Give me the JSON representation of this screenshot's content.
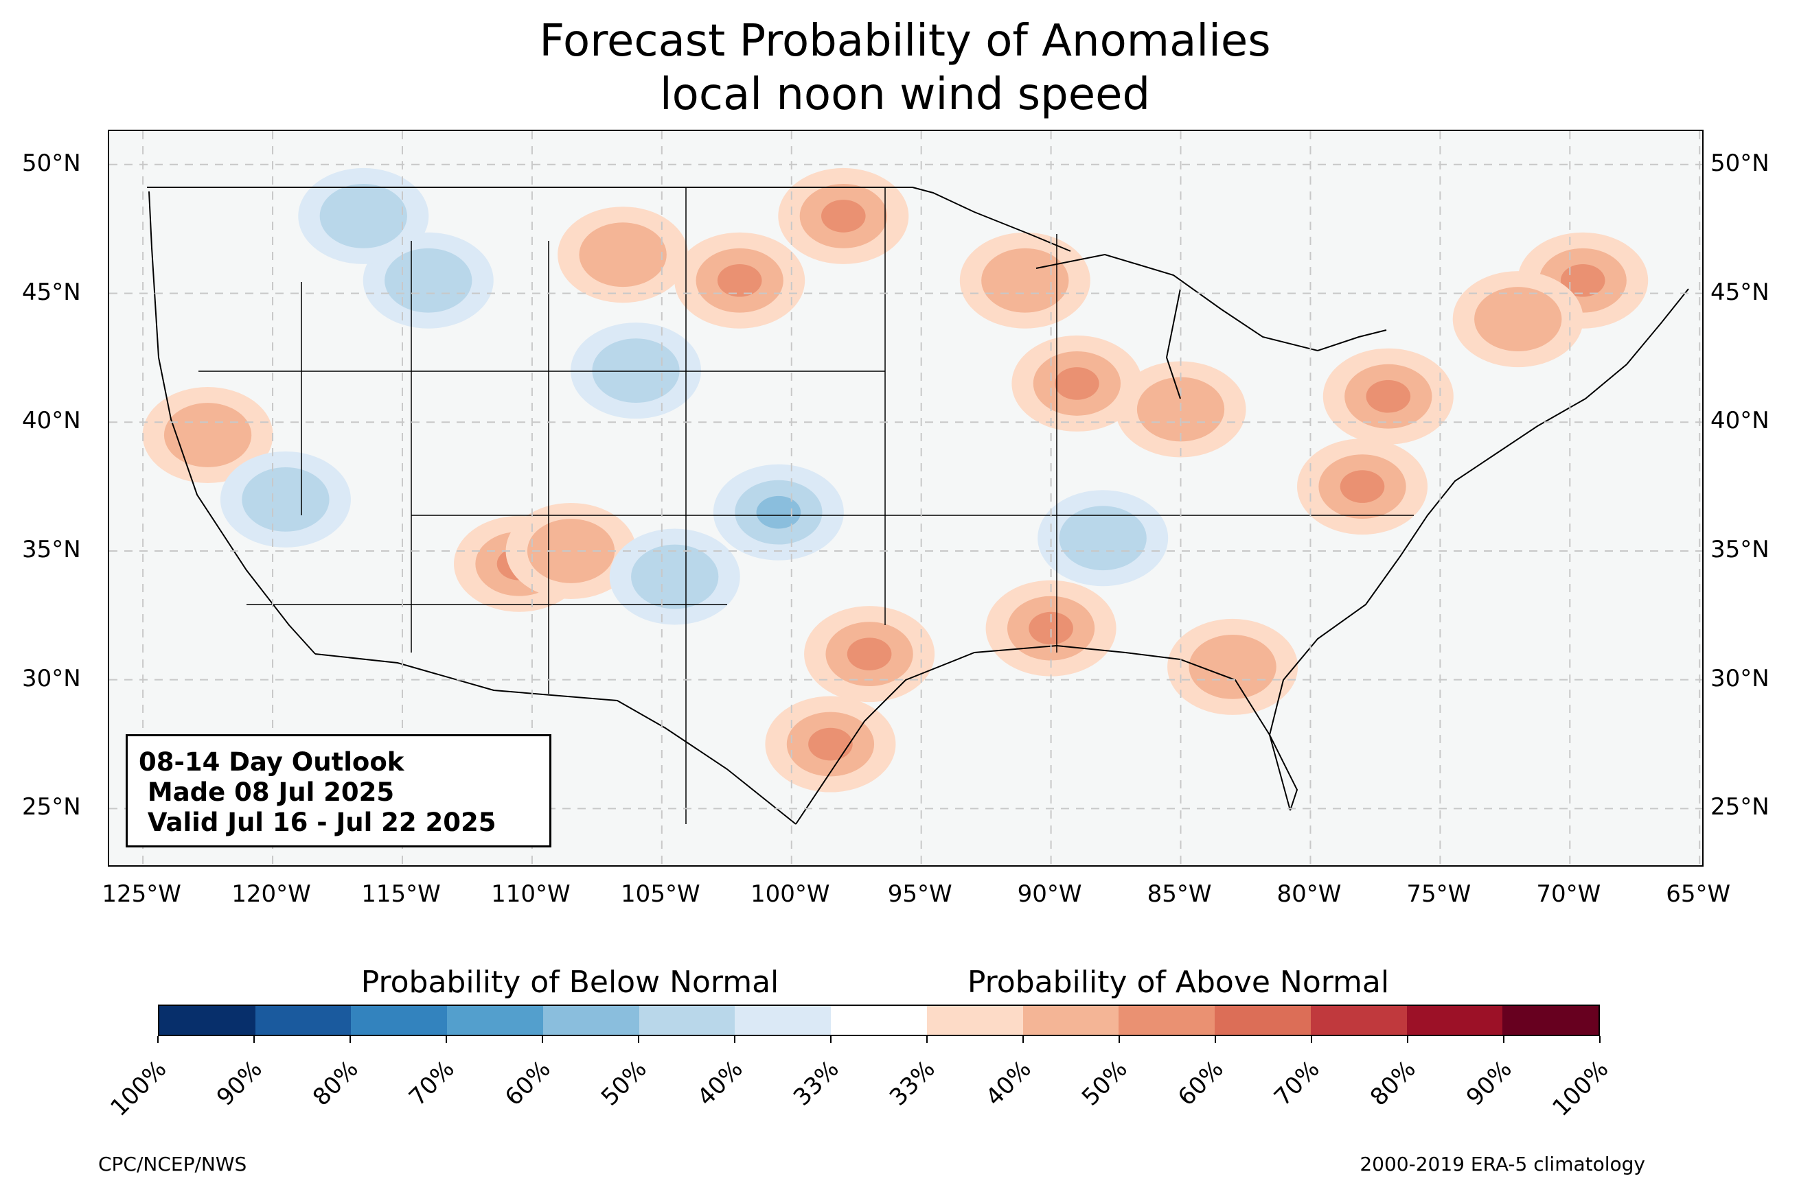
{
  "title": {
    "line1": "Forecast Probability of Anomalies",
    "line2": "local noon wind speed"
  },
  "map": {
    "projection": "lat-lon",
    "lon_range": [
      -126.3,
      -64.9
    ],
    "lat_range": [
      22.8,
      51.3
    ],
    "grid": true,
    "latitude_labels": [
      "50°N",
      "45°N",
      "40°N",
      "35°N",
      "30°N",
      "25°N"
    ],
    "latitude_values": [
      50,
      45,
      40,
      35,
      30,
      25
    ],
    "longitude_labels": [
      "125°W",
      "120°W",
      "115°W",
      "110°W",
      "105°W",
      "100°W",
      "95°W",
      "90°W",
      "85°W",
      "80°W",
      "75°W",
      "70°W",
      "65°W"
    ],
    "longitude_values": [
      -125,
      -120,
      -115,
      -110,
      -105,
      -100,
      -95,
      -90,
      -85,
      -80,
      -75,
      -70,
      -65
    ],
    "land_color": "#f5f7f7",
    "above_regions": [
      {
        "lon": -106.5,
        "lat": 46.5,
        "level": 1
      },
      {
        "lon": -102.0,
        "lat": 45.5,
        "level": 2
      },
      {
        "lon": -98.0,
        "lat": 48.0,
        "level": 2
      },
      {
        "lon": -97.0,
        "lat": 31.0,
        "level": 2
      },
      {
        "lon": -98.5,
        "lat": 27.5,
        "level": 2
      },
      {
        "lon": -110.5,
        "lat": 34.5,
        "level": 2
      },
      {
        "lon": -108.5,
        "lat": 35.0,
        "level": 1
      },
      {
        "lon": -89.0,
        "lat": 41.5,
        "level": 2
      },
      {
        "lon": -85.0,
        "lat": 40.5,
        "level": 1
      },
      {
        "lon": -77.0,
        "lat": 41.0,
        "level": 2
      },
      {
        "lon": -78.0,
        "lat": 37.5,
        "level": 2
      },
      {
        "lon": -69.5,
        "lat": 45.5,
        "level": 2
      },
      {
        "lon": -72.0,
        "lat": 44.0,
        "level": 1
      },
      {
        "lon": -90.0,
        "lat": 32.0,
        "level": 2
      },
      {
        "lon": -122.5,
        "lat": 39.5,
        "level": 1
      },
      {
        "lon": -91.0,
        "lat": 45.5,
        "level": 1
      },
      {
        "lon": -83.0,
        "lat": 30.5,
        "level": 1
      }
    ],
    "below_regions": [
      {
        "lon": -100.5,
        "lat": 36.5,
        "level": 2
      },
      {
        "lon": -104.5,
        "lat": 34.0,
        "level": 1
      },
      {
        "lon": -114.0,
        "lat": 45.5,
        "level": 1
      },
      {
        "lon": -106.0,
        "lat": 42.0,
        "level": 1
      },
      {
        "lon": -88.0,
        "lat": 35.5,
        "level": 1
      },
      {
        "lon": -119.5,
        "lat": 37.0,
        "level": 1
      },
      {
        "lon": -116.5,
        "lat": 48.0,
        "level": 1
      }
    ]
  },
  "outlook": {
    "line1": "08-14 Day Outlook",
    "line2": " Made 08 Jul 2025",
    "line3": " Valid Jul 16 - Jul 22 2025"
  },
  "colorbar": {
    "below_heading": "Probability of Below Normal",
    "above_heading": "Probability of Above Normal",
    "colors": [
      "#072f6b",
      "#1a5a9e",
      "#3383be",
      "#539fcd",
      "#8abedd",
      "#b9d7ea",
      "#dbe9f6",
      "#ffffff",
      "#fddbc7",
      "#f4b596",
      "#ea9172",
      "#dc6e57",
      "#c0393d",
      "#9c1127",
      "#67001f"
    ],
    "tick_labels": [
      "100%",
      "90%",
      "80%",
      "70%",
      "60%",
      "50%",
      "40%",
      "33%",
      "33%",
      "40%",
      "50%",
      "60%",
      "70%",
      "80%",
      "90%",
      "100%"
    ]
  },
  "credits": {
    "left": "CPC/NCEP/NWS",
    "right": "2000-2019 ERA-5 climatology"
  }
}
